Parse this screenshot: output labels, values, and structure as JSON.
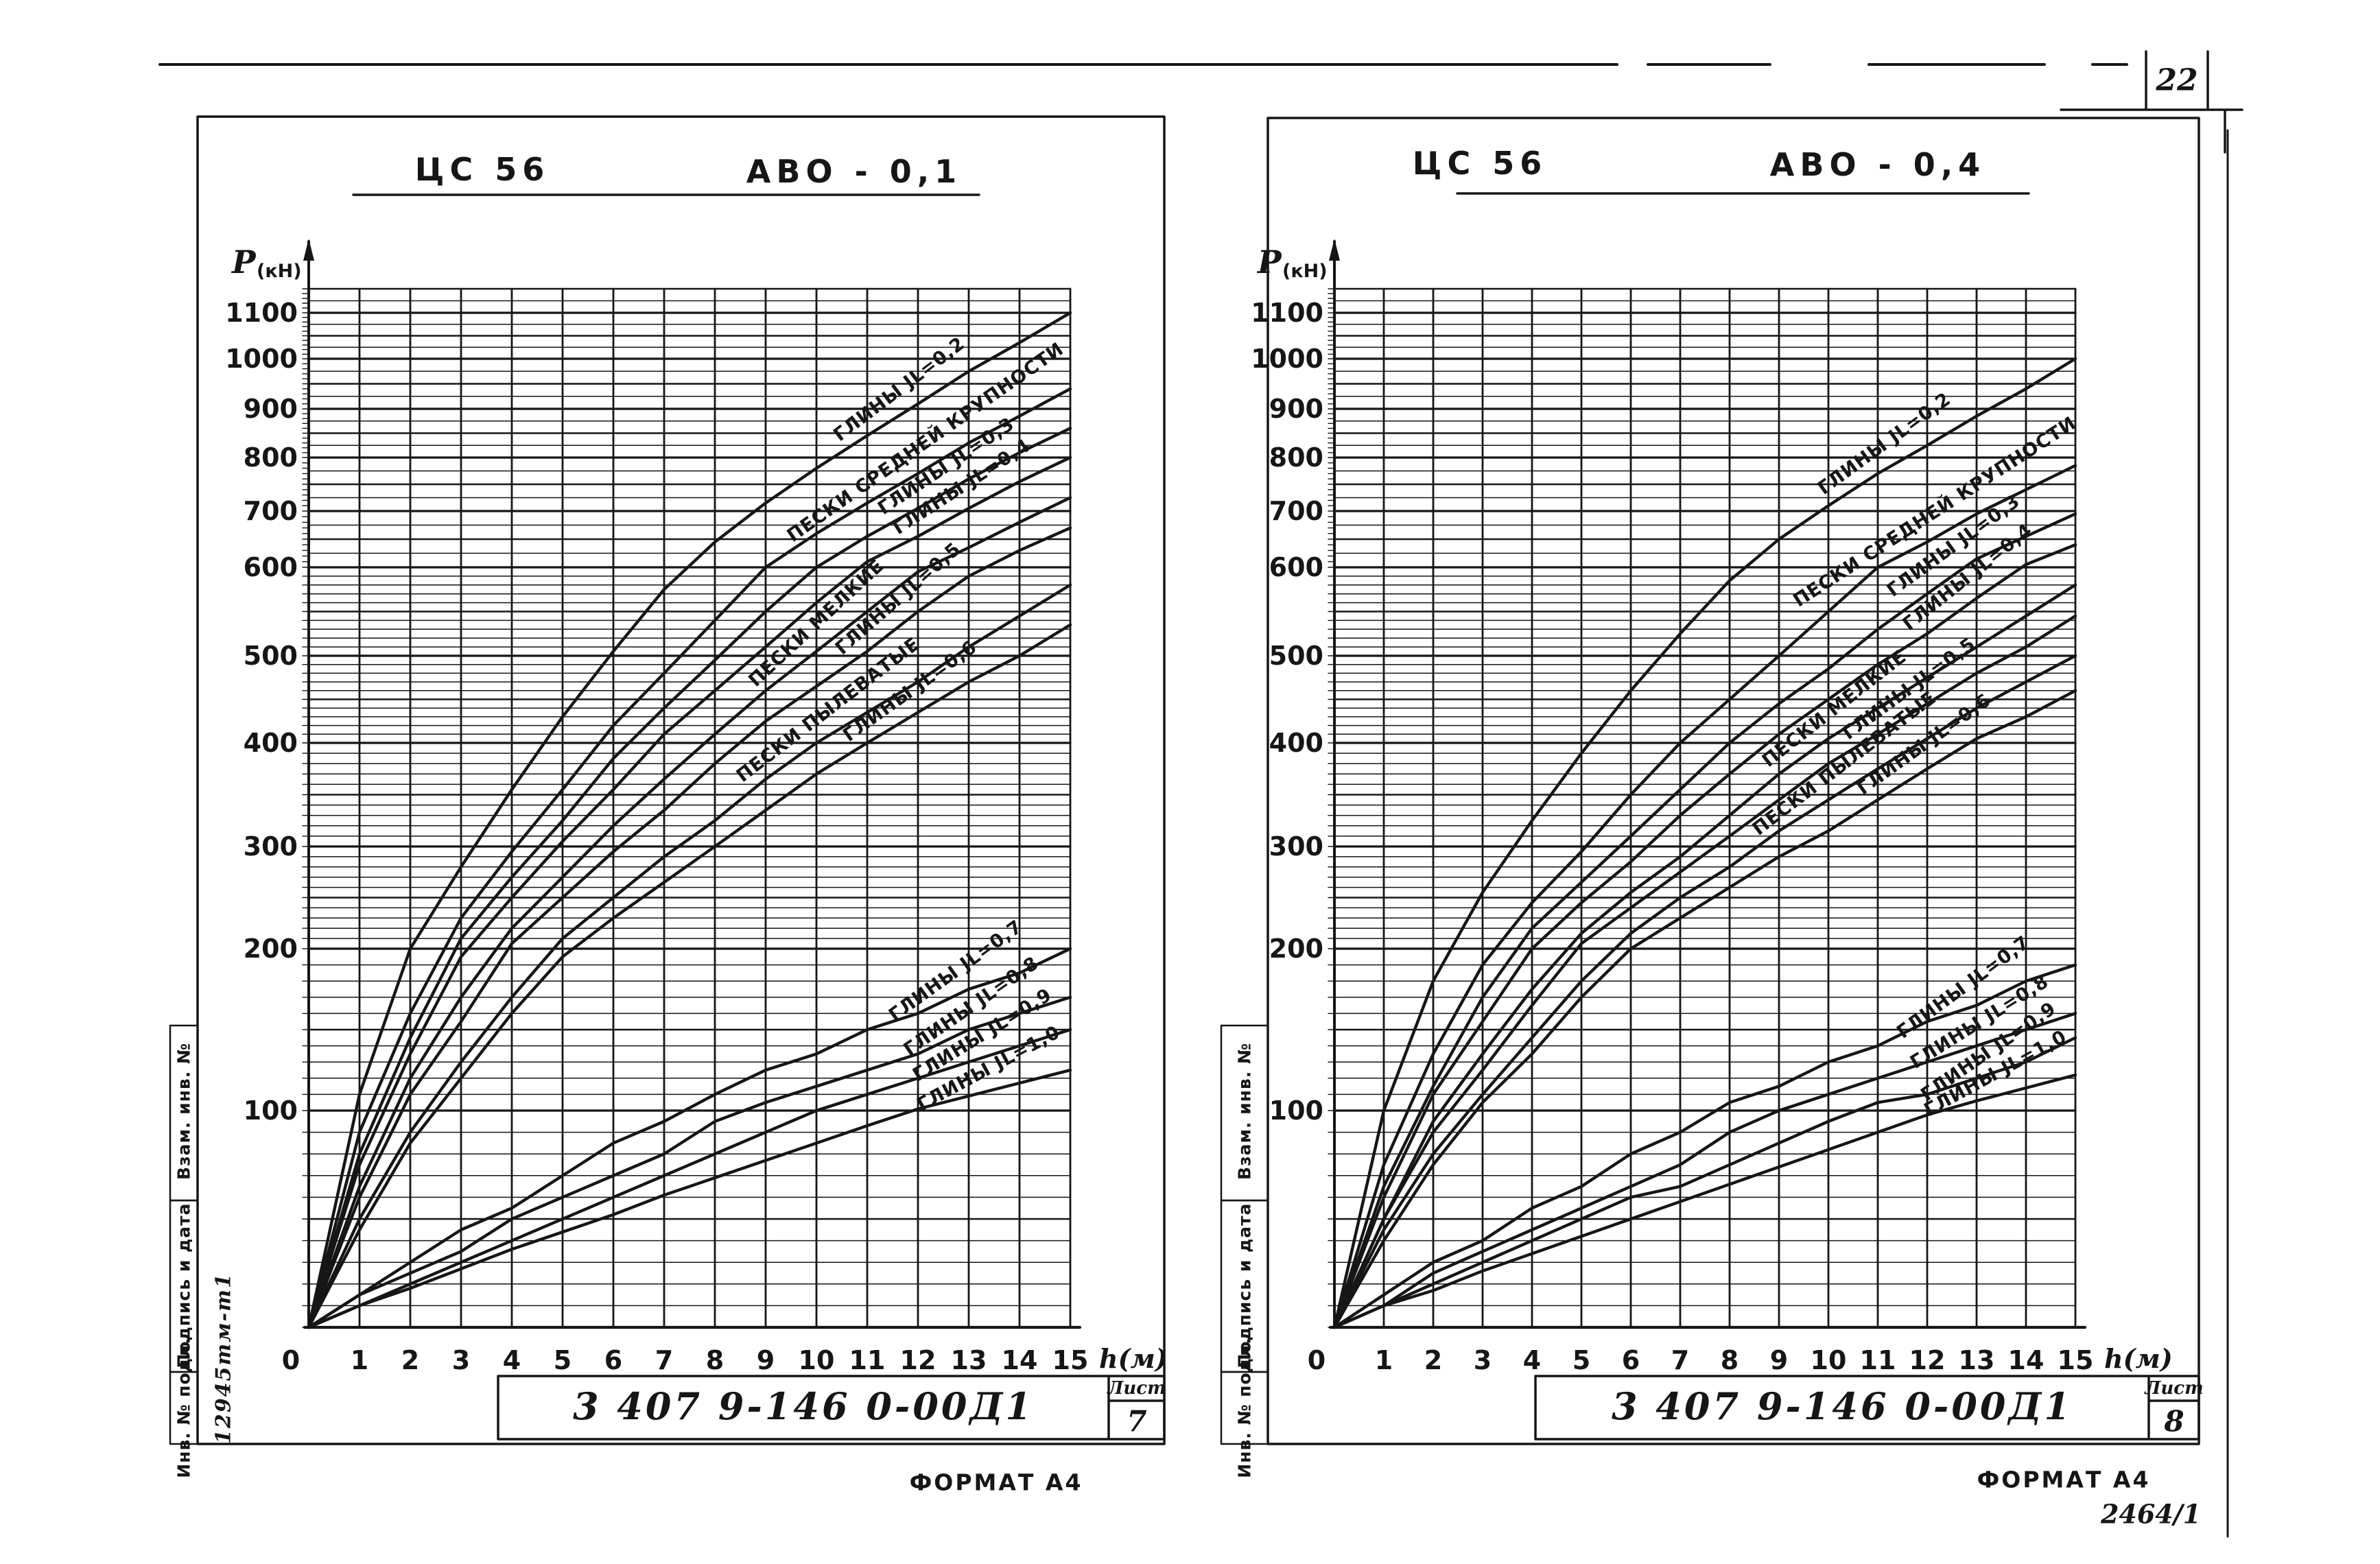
{
  "page": {
    "number": "22"
  },
  "ink_color": "#161616",
  "sheets": [
    {
      "header": {
        "code": "ЦС 56",
        "variant": "АВО - 0,1"
      },
      "title_block": {
        "doc_number": "3 407 9-146 0-00Д1",
        "sheet_label": "Лист",
        "sheet_number": "7",
        "format_note": "ФОРМАТ А4"
      },
      "margin_labels": [
        "Взам. инв. №",
        "Подпись и дата",
        "Инв. № подл."
      ],
      "margin_note": "12945тм-т1",
      "corner_note": "",
      "chart_data": {
        "type": "line",
        "title": "ЦС 56 АВО - 0,1",
        "xlabel": "h(м)",
        "ylabel": "P (кН)",
        "xlim": [
          0,
          15
        ],
        "ylim": [
          0,
          1150
        ],
        "grid": {
          "on": true,
          "fine_step_below_600_kN": 10,
          "step_above_600_kN": 25
        },
        "x_ticks": [
          0,
          1,
          2,
          3,
          4,
          5,
          6,
          7,
          8,
          9,
          10,
          11,
          12,
          13,
          14,
          15
        ],
        "y_ticks": [
          100,
          200,
          300,
          400,
          500,
          600,
          700,
          800,
          900,
          1000,
          1100
        ],
        "x": [
          0,
          1,
          2,
          3,
          4,
          5,
          6,
          7,
          8,
          9,
          10,
          11,
          12,
          13,
          14,
          15
        ],
        "series": [
          {
            "name": "ГЛИНЫ JL=0,2",
            "label_h": 11.9,
            "values": [
              0,
              110,
              200,
              280,
              355,
              430,
              505,
              575,
              645,
              715,
              780,
              845,
              910,
              975,
              1035,
              1100
            ]
          },
          {
            "name": "ПЕСКИ СРЕДНЕЙ КРУПНОСТИ",
            "label_h": 12.4,
            "values": [
              0,
              90,
              160,
              230,
              295,
              355,
              420,
              480,
              540,
              600,
              660,
              715,
              770,
              830,
              885,
              940
            ]
          },
          {
            "name": "ГЛИНЫ JL=0,3",
            "label_h": 12.8,
            "values": [
              0,
              80,
              145,
              210,
              270,
              325,
              385,
              440,
              495,
              550,
              600,
              655,
              705,
              760,
              810,
              860
            ]
          },
          {
            "name": "ГЛИНЫ JL=0,4",
            "label_h": 13.1,
            "values": [
              0,
              75,
              135,
              195,
              250,
              305,
              355,
              410,
              460,
              510,
              560,
              610,
              655,
              705,
              755,
              800
            ]
          },
          {
            "name": "ПЕСКИ МЕЛКИЕ",
            "label_h": 10.3,
            "values": [
              0,
              65,
              120,
              170,
              220,
              270,
              320,
              365,
              410,
              460,
              505,
              550,
              595,
              635,
              680,
              725
            ]
          },
          {
            "name": "ГЛИНЫ JL=0,5",
            "label_h": 11.9,
            "values": [
              0,
              60,
              110,
              155,
              205,
              250,
              295,
              335,
              380,
              425,
              465,
              505,
              550,
              590,
              630,
              670
            ]
          },
          {
            "name": "ПЕСКИ ПЫЛЕВАТЫЕ",
            "label_h": 10.5,
            "values": [
              0,
              50,
              90,
              130,
              170,
              210,
              250,
              290,
              325,
              365,
              400,
              435,
              470,
              510,
              545,
              580
            ]
          },
          {
            "name": "ГЛИНЫ JL=0,6",
            "label_h": 12.1,
            "values": [
              0,
              45,
              85,
              120,
              160,
              195,
              230,
              265,
              300,
              335,
              370,
              400,
              435,
              470,
              500,
              535
            ]
          },
          {
            "name": "ГЛИНЫ JL=0,7",
            "label_h": 13.0,
            "values": [
              0,
              15,
              30,
              45,
              55,
              70,
              85,
              95,
              110,
              125,
              135,
              150,
              160,
              175,
              185,
              200
            ]
          },
          {
            "name": "ГЛИНЫ JL=0,8",
            "label_h": 13.3,
            "values": [
              0,
              15,
              25,
              35,
              50,
              60,
              70,
              80,
              95,
              105,
              115,
              125,
              135,
              150,
              160,
              170
            ]
          },
          {
            "name": "ГЛИНЫ JL=0,9",
            "label_h": 13.5,
            "values": [
              0,
              10,
              20,
              30,
              40,
              50,
              60,
              70,
              80,
              90,
              100,
              110,
              120,
              130,
              140,
              150
            ]
          },
          {
            "name": "ГЛИНЫ JL=1,0",
            "label_h": 13.6,
            "values": [
              0,
              10,
              18,
              27,
              36,
              44,
              52,
              61,
              69,
              77,
              85,
              93,
              101,
              109,
              117,
              125
            ]
          }
        ]
      }
    },
    {
      "header": {
        "code": "ЦС 56",
        "variant": "АВО - 0,4"
      },
      "title_block": {
        "doc_number": "3 407 9-146 0-00Д1",
        "sheet_label": "Лист",
        "sheet_number": "8",
        "format_note": "ФОРМАТ А4"
      },
      "margin_labels": [
        "Взам. инв. №",
        "Подпись и дата",
        "Инв. № подл."
      ],
      "margin_note": "",
      "corner_note": "2464/1",
      "chart_data": {
        "type": "line",
        "title": "ЦС 56 АВО - 0,4",
        "xlabel": "h(м)",
        "ylabel": "P (кН)",
        "xlim": [
          0,
          15
        ],
        "ylim": [
          0,
          1150
        ],
        "grid": {
          "on": true,
          "fine_step_below_600_kN": 10,
          "step_above_600_kN": 25
        },
        "x_ticks": [
          0,
          1,
          2,
          3,
          4,
          5,
          6,
          7,
          8,
          9,
          10,
          11,
          12,
          13,
          14,
          15
        ],
        "y_ticks": [
          100,
          200,
          300,
          400,
          500,
          600,
          700,
          800,
          900,
          1000,
          1100
        ],
        "x": [
          0,
          1,
          2,
          3,
          4,
          5,
          6,
          7,
          8,
          9,
          10,
          11,
          12,
          13,
          14,
          15
        ],
        "series": [
          {
            "name": "ГЛИНЫ JL=0,2",
            "label_h": 11.4,
            "values": [
              0,
              100,
              180,
              255,
              325,
              390,
              460,
              525,
              585,
              650,
              710,
              770,
              825,
              885,
              940,
              1000
            ]
          },
          {
            "name": "ПЕСКИ СРЕДНЕЙ КРУПНОСТИ",
            "label_h": 12.4,
            "values": [
              0,
              75,
              135,
              190,
              245,
              295,
              350,
              400,
              450,
              500,
              550,
              600,
              645,
              695,
              740,
              785
            ]
          },
          {
            "name": "ГЛИНЫ JL=0,3",
            "label_h": 12.8,
            "values": [
              0,
              65,
              115,
              170,
              220,
              265,
              310,
              355,
              400,
              445,
              485,
              530,
              570,
              615,
              655,
              695
            ]
          },
          {
            "name": "ГЛИНЫ JL=0,4",
            "label_h": 13.1,
            "values": [
              0,
              60,
              110,
              155,
              200,
              245,
              285,
              330,
              370,
              410,
              450,
              490,
              525,
              565,
              605,
              640
            ]
          },
          {
            "name": "ПЕСКИ МЕЛКИЕ",
            "label_h": 10.4,
            "values": [
              0,
              50,
              95,
              135,
              175,
              215,
              255,
              290,
              330,
              370,
              405,
              440,
              475,
              510,
              545,
              580
            ]
          },
          {
            "name": "ГЛИНЫ JL=0,5",
            "label_h": 11.9,
            "values": [
              0,
              50,
              90,
              125,
              165,
              205,
              240,
              275,
              310,
              345,
              380,
              410,
              445,
              480,
              510,
              545
            ]
          },
          {
            "name": "ПЕСКИ ПЫЛЕВАТЫЕ",
            "label_h": 10.6,
            "values": [
              0,
              45,
              80,
              110,
              145,
              180,
              215,
              250,
              280,
              315,
              345,
              375,
              405,
              440,
              470,
              500
            ]
          },
          {
            "name": "ГЛИНЫ JL=0,6",
            "label_h": 12.2,
            "values": [
              0,
              40,
              75,
              105,
              135,
              170,
              200,
              230,
              260,
              290,
              315,
              345,
              375,
              405,
              430,
              460
            ]
          },
          {
            "name": "ГЛИНЫ JL=0,7",
            "label_h": 13.0,
            "values": [
              0,
              15,
              30,
              40,
              55,
              65,
              80,
              90,
              105,
              115,
              130,
              140,
              155,
              165,
              180,
              190
            ]
          },
          {
            "name": "ГЛИНЫ JL=0,8",
            "label_h": 13.3,
            "values": [
              0,
              10,
              25,
              35,
              45,
              55,
              65,
              75,
              90,
              100,
              110,
              120,
              130,
              140,
              150,
              160
            ]
          },
          {
            "name": "ГЛИНЫ JL=0,9",
            "label_h": 13.5,
            "values": [
              0,
              10,
              20,
              30,
              40,
              50,
              60,
              65,
              75,
              85,
              95,
              105,
              110,
              120,
              130,
              145
            ]
          },
          {
            "name": "ГЛИНЫ JL=1,0",
            "label_h": 13.6,
            "values": [
              0,
              10,
              17,
              26,
              34,
              42,
              50,
              58,
              66,
              74,
              82,
              90,
              98,
              106,
              114,
              122
            ]
          }
        ]
      }
    }
  ]
}
